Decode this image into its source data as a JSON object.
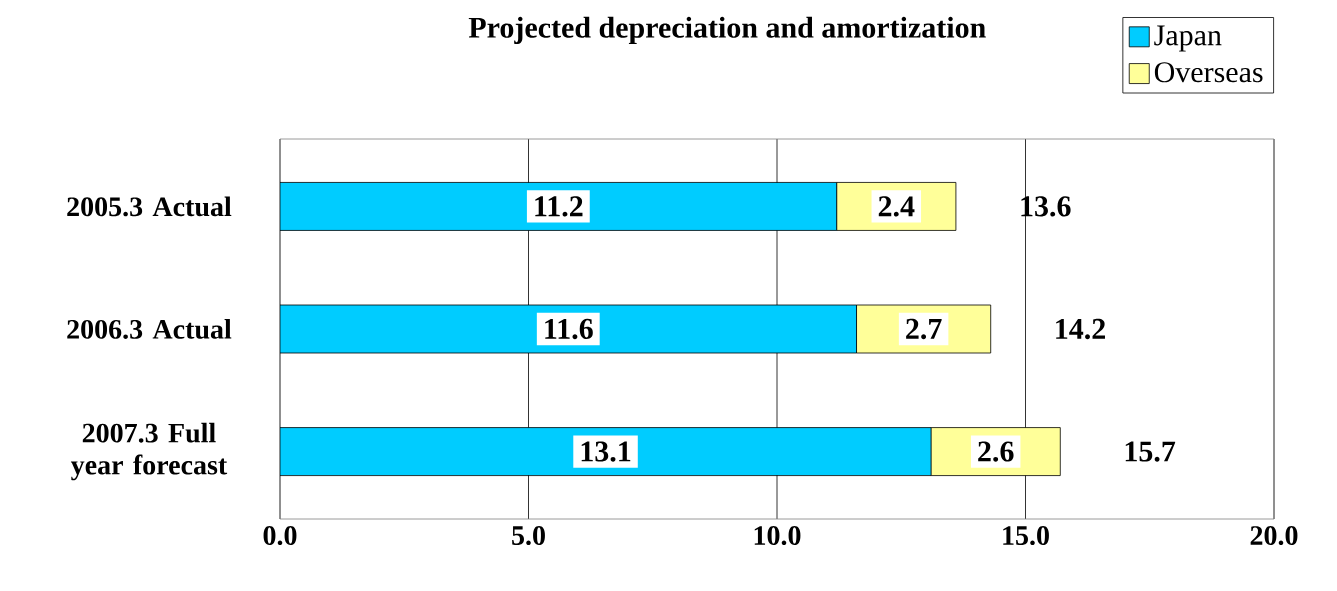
{
  "chart_data": {
    "type": "bar",
    "orientation": "horizontal",
    "stacked": true,
    "title": "Projected depreciation and amortization",
    "categories": [
      "2005.3 Actual",
      "2006.3 Actual",
      "2007.3 Full year forecast"
    ],
    "series": [
      {
        "name": "Japan",
        "color": "#00ccff",
        "values": [
          11.2,
          11.6,
          13.1
        ]
      },
      {
        "name": "Overseas",
        "color": "#ffff99",
        "values": [
          2.4,
          2.7,
          2.6
        ]
      }
    ],
    "totals": [
      "13.6",
      "14.2",
      "15.7"
    ],
    "data_labels": true,
    "xlim": [
      0,
      20
    ],
    "xticks": [
      {
        "value": 0,
        "label": "0.0"
      },
      {
        "value": 5,
        "label": "5.0"
      },
      {
        "value": 10,
        "label": "10.0"
      },
      {
        "value": 15,
        "label": "15.0"
      },
      {
        "value": 20,
        "label": "20.0"
      }
    ],
    "grid": "x",
    "legend": "top right"
  }
}
